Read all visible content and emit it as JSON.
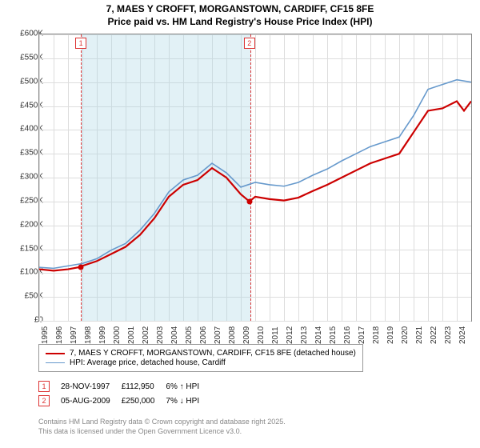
{
  "title_line1": "7, MAES Y CROFFT, MORGANSTOWN, CARDIFF, CF15 8FE",
  "title_line2": "Price paid vs. HM Land Registry's House Price Index (HPI)",
  "chart": {
    "type": "line",
    "xlim": [
      1995,
      2025
    ],
    "ylim": [
      0,
      600000
    ],
    "ytick_step": 50000,
    "yticks": [
      "£0",
      "£50K",
      "£100K",
      "£150K",
      "£200K",
      "£250K",
      "£300K",
      "£350K",
      "£400K",
      "£450K",
      "£500K",
      "£550K",
      "£600K"
    ],
    "xticks": [
      "1995",
      "1996",
      "1997",
      "1998",
      "1999",
      "2000",
      "2001",
      "2002",
      "2003",
      "2004",
      "2005",
      "2006",
      "2007",
      "2008",
      "2009",
      "2010",
      "2011",
      "2012",
      "2013",
      "2014",
      "2015",
      "2016",
      "2017",
      "2018",
      "2019",
      "2020",
      "2021",
      "2022",
      "2023",
      "2024"
    ],
    "grid_color": "#dddddd",
    "background_color": "#ffffff",
    "shade_color": "rgba(173,216,230,0.35)",
    "shade_ranges": [
      [
        1997.9,
        2009.6
      ]
    ],
    "series": [
      {
        "name": "red",
        "color": "#cc0000",
        "width": 2.2,
        "data": [
          [
            1995,
            108000
          ],
          [
            1996,
            105000
          ],
          [
            1997,
            108000
          ],
          [
            1997.9,
            112950
          ],
          [
            1998,
            115000
          ],
          [
            1999,
            125000
          ],
          [
            2000,
            140000
          ],
          [
            2001,
            155000
          ],
          [
            2002,
            180000
          ],
          [
            2003,
            215000
          ],
          [
            2004,
            260000
          ],
          [
            2005,
            285000
          ],
          [
            2006,
            295000
          ],
          [
            2007,
            320000
          ],
          [
            2008,
            300000
          ],
          [
            2009,
            265000
          ],
          [
            2009.6,
            250000
          ],
          [
            2010,
            260000
          ],
          [
            2011,
            255000
          ],
          [
            2012,
            252000
          ],
          [
            2013,
            258000
          ],
          [
            2014,
            272000
          ],
          [
            2015,
            285000
          ],
          [
            2016,
            300000
          ],
          [
            2017,
            315000
          ],
          [
            2018,
            330000
          ],
          [
            2019,
            340000
          ],
          [
            2020,
            350000
          ],
          [
            2021,
            395000
          ],
          [
            2022,
            440000
          ],
          [
            2023,
            445000
          ],
          [
            2024,
            460000
          ],
          [
            2024.5,
            440000
          ],
          [
            2025,
            460000
          ]
        ]
      },
      {
        "name": "blue",
        "color": "#6699cc",
        "width": 1.6,
        "data": [
          [
            1995,
            112000
          ],
          [
            1996,
            110000
          ],
          [
            1997,
            115000
          ],
          [
            1998,
            120000
          ],
          [
            1999,
            130000
          ],
          [
            2000,
            148000
          ],
          [
            2001,
            162000
          ],
          [
            2002,
            190000
          ],
          [
            2003,
            225000
          ],
          [
            2004,
            270000
          ],
          [
            2005,
            295000
          ],
          [
            2006,
            305000
          ],
          [
            2007,
            330000
          ],
          [
            2008,
            310000
          ],
          [
            2009,
            280000
          ],
          [
            2010,
            290000
          ],
          [
            2011,
            285000
          ],
          [
            2012,
            282000
          ],
          [
            2013,
            290000
          ],
          [
            2014,
            305000
          ],
          [
            2015,
            318000
          ],
          [
            2016,
            335000
          ],
          [
            2017,
            350000
          ],
          [
            2018,
            365000
          ],
          [
            2019,
            375000
          ],
          [
            2020,
            385000
          ],
          [
            2021,
            430000
          ],
          [
            2022,
            485000
          ],
          [
            2023,
            495000
          ],
          [
            2024,
            505000
          ],
          [
            2025,
            500000
          ]
        ]
      }
    ],
    "sale_points": [
      [
        1997.9,
        112950
      ],
      [
        2009.6,
        250000
      ]
    ],
    "markers": [
      "1",
      "2"
    ]
  },
  "legend": {
    "items": [
      {
        "color": "#cc0000",
        "width": 2.2,
        "label": "7, MAES Y CROFFT, MORGANSTOWN, CARDIFF, CF15 8FE (detached house)"
      },
      {
        "color": "#6699cc",
        "width": 1.6,
        "label": "HPI: Average price, detached house, Cardiff"
      }
    ]
  },
  "events": [
    {
      "n": "1",
      "date": "28-NOV-1997",
      "price": "£112,950",
      "delta": "6% ↑ HPI"
    },
    {
      "n": "2",
      "date": "05-AUG-2009",
      "price": "£250,000",
      "delta": "7% ↓ HPI"
    }
  ],
  "footer_line1": "Contains HM Land Registry data © Crown copyright and database right 2025.",
  "footer_line2": "This data is licensed under the Open Government Licence v3.0."
}
